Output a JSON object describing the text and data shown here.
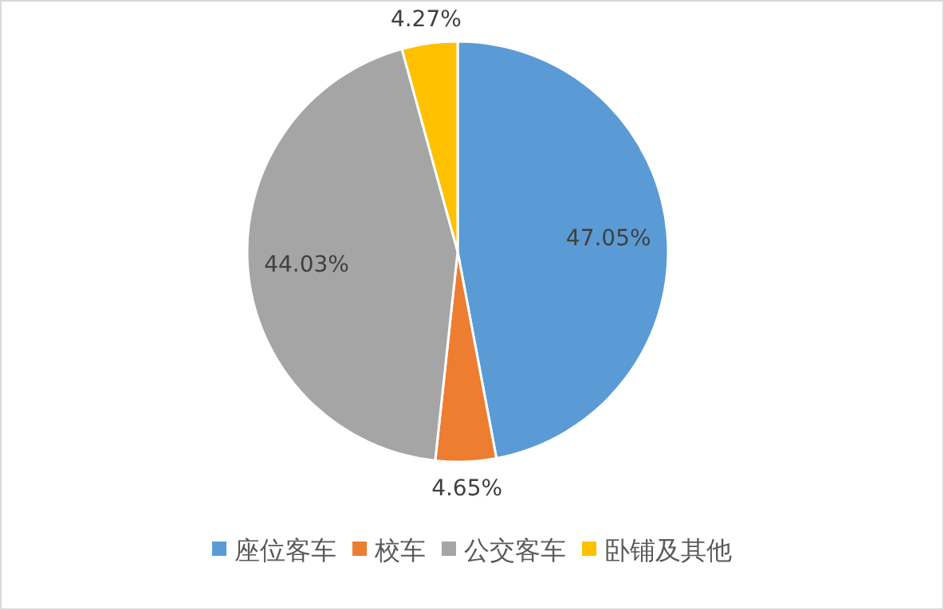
{
  "chart_data": {
    "type": "pie",
    "categories": [
      "座位客车",
      "校车",
      "公交客车",
      "卧铺及其他"
    ],
    "values": [
      47.05,
      4.65,
      44.03,
      4.27
    ],
    "colors": [
      "#5b9bd5",
      "#ed7d31",
      "#a5a5a5",
      "#ffc000"
    ],
    "value_labels": [
      "47.05%",
      "4.65%",
      "44.03%",
      "4.27%"
    ],
    "legend": "bottom"
  }
}
